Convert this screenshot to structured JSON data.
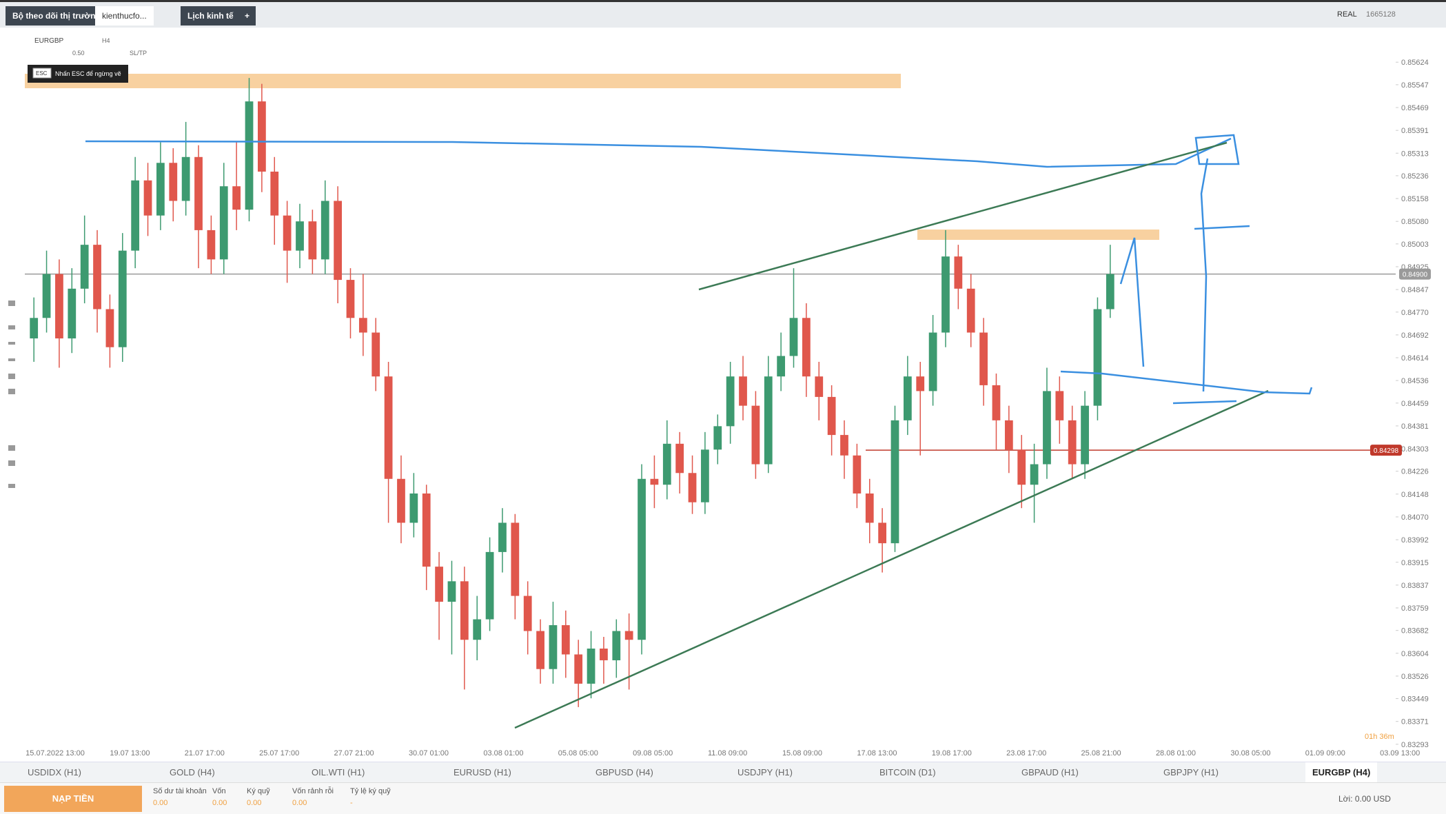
{
  "top_tabs": [
    "Bộ theo dõi thị trường",
    "kienthucfo...",
    "Lịch kinh tế"
  ],
  "top_right": {
    "account_type": "REAL",
    "account_id": "1665128"
  },
  "toolbar": {
    "symbol": "EURGBP",
    "timeframe": "H4",
    "lot": "0.50",
    "sltp": "SL/TP",
    "esc_key": "ESC",
    "esc_hint": "Nhấn ESC để ngừng vẽ"
  },
  "chart_data": {
    "type": "candlestick",
    "up_color": "#3d9a70",
    "down_color": "#e0574c",
    "open": [
      0.8468,
      0.8475,
      0.849,
      0.8468,
      0.8485,
      0.85,
      0.8478,
      0.8465,
      0.8498,
      0.8522,
      0.851,
      0.8528,
      0.8515,
      0.853,
      0.8505,
      0.8495,
      0.852,
      0.8512,
      0.8549,
      0.8525,
      0.851,
      0.8498,
      0.8508,
      0.8495,
      0.8515,
      0.8488,
      0.8475,
      0.847,
      0.8455,
      0.842,
      0.8405,
      0.8415,
      0.839,
      0.8378,
      0.8385,
      0.8365,
      0.8372,
      0.8395,
      0.8405,
      0.838,
      0.8368,
      0.8355,
      0.837,
      0.836,
      0.835,
      0.8362,
      0.8358,
      0.8368,
      0.8365,
      0.842,
      0.8418,
      0.8432,
      0.8422,
      0.8412,
      0.843,
      0.8438,
      0.8455,
      0.8445,
      0.8425,
      0.8455,
      0.8462,
      0.8475,
      0.8455,
      0.8448,
      0.8435,
      0.8428,
      0.8415,
      0.8405,
      0.8398,
      0.844,
      0.8455,
      0.845,
      0.847,
      0.8496,
      0.8485,
      0.847,
      0.8452,
      0.844,
      0.843,
      0.8418,
      0.8425,
      0.845,
      0.844,
      0.8425,
      0.8445,
      0.8478
    ],
    "high": [
      0.8482,
      0.8498,
      0.8495,
      0.8492,
      0.851,
      0.8505,
      0.8483,
      0.8504,
      0.853,
      0.8528,
      0.8535,
      0.8533,
      0.8542,
      0.8534,
      0.851,
      0.8528,
      0.8535,
      0.8557,
      0.8555,
      0.853,
      0.8515,
      0.8514,
      0.8512,
      0.8522,
      0.852,
      0.8492,
      0.849,
      0.8475,
      0.846,
      0.8428,
      0.8422,
      0.8418,
      0.8395,
      0.8392,
      0.839,
      0.838,
      0.84,
      0.841,
      0.8408,
      0.8385,
      0.8372,
      0.8378,
      0.8375,
      0.8365,
      0.8368,
      0.8366,
      0.8372,
      0.8374,
      0.8425,
      0.8428,
      0.844,
      0.8436,
      0.8428,
      0.8436,
      0.8442,
      0.846,
      0.8462,
      0.845,
      0.8462,
      0.847,
      0.8492,
      0.848,
      0.846,
      0.8452,
      0.844,
      0.8432,
      0.842,
      0.841,
      0.8445,
      0.8462,
      0.846,
      0.8476,
      0.8505,
      0.85,
      0.849,
      0.8475,
      0.8456,
      0.8445,
      0.8435,
      0.8432,
      0.8458,
      0.8455,
      0.8445,
      0.845,
      0.8482,
      0.85
    ],
    "low": [
      0.846,
      0.847,
      0.8458,
      0.8463,
      0.848,
      0.847,
      0.8458,
      0.846,
      0.8492,
      0.8503,
      0.8505,
      0.8508,
      0.851,
      0.8492,
      0.849,
      0.849,
      0.8505,
      0.8508,
      0.8518,
      0.85,
      0.8487,
      0.8492,
      0.849,
      0.849,
      0.848,
      0.8468,
      0.8462,
      0.845,
      0.8405,
      0.8398,
      0.84,
      0.8382,
      0.8365,
      0.836,
      0.8348,
      0.8358,
      0.8368,
      0.8388,
      0.8372,
      0.836,
      0.835,
      0.835,
      0.8352,
      0.8342,
      0.8345,
      0.835,
      0.8352,
      0.8348,
      0.836,
      0.841,
      0.8413,
      0.8415,
      0.8408,
      0.8408,
      0.8425,
      0.8432,
      0.844,
      0.842,
      0.8422,
      0.845,
      0.8458,
      0.8448,
      0.844,
      0.8428,
      0.842,
      0.841,
      0.8398,
      0.8388,
      0.8395,
      0.8435,
      0.8428,
      0.8445,
      0.8465,
      0.8478,
      0.8465,
      0.8445,
      0.843,
      0.8422,
      0.841,
      0.8405,
      0.842,
      0.8432,
      0.842,
      0.842,
      0.844,
      0.8475
    ],
    "close": [
      0.8475,
      0.849,
      0.8468,
      0.8485,
      0.85,
      0.8478,
      0.8465,
      0.8498,
      0.8522,
      0.851,
      0.8528,
      0.8515,
      0.853,
      0.8505,
      0.8495,
      0.852,
      0.8512,
      0.8549,
      0.8525,
      0.851,
      0.8498,
      0.8508,
      0.8495,
      0.8515,
      0.8488,
      0.8475,
      0.847,
      0.8455,
      0.842,
      0.8405,
      0.8415,
      0.839,
      0.8378,
      0.8385,
      0.8365,
      0.8372,
      0.8395,
      0.8405,
      0.838,
      0.8368,
      0.8355,
      0.837,
      0.836,
      0.835,
      0.8362,
      0.8358,
      0.8368,
      0.8365,
      0.842,
      0.8418,
      0.8432,
      0.8422,
      0.8412,
      0.843,
      0.8438,
      0.8455,
      0.8445,
      0.8425,
      0.8455,
      0.8462,
      0.8475,
      0.8455,
      0.8448,
      0.8435,
      0.8428,
      0.8415,
      0.8405,
      0.8398,
      0.844,
      0.8455,
      0.845,
      0.847,
      0.8496,
      0.8485,
      0.847,
      0.8452,
      0.844,
      0.843,
      0.8418,
      0.8425,
      0.845,
      0.844,
      0.8425,
      0.8445,
      0.8478,
      0.849
    ],
    "ylim": [
      0.83269,
      0.85707
    ],
    "yticks": [
      0.85624,
      0.85547,
      0.85469,
      0.85391,
      0.85313,
      0.85236,
      0.85158,
      {
        "value": 0.8508,
        "label": "0.85080"
      },
      0.85003,
      0.84925,
      0.84847,
      {
        "value": 0.8477,
        "label": "0.84770"
      },
      0.84692,
      0.84614,
      0.84536,
      0.84459,
      0.84381,
      0.84303,
      0.84226,
      0.84148,
      {
        "value": 0.8407,
        "label": "0.84070"
      },
      0.83992,
      0.83915,
      0.83837,
      0.83759,
      0.83682,
      0.83604,
      0.83526,
      0.83449,
      0.83371,
      0.83293
    ],
    "price_markers": [
      {
        "value": 0.849,
        "label": "0.84900",
        "color": "#9a9a9a"
      },
      {
        "value": 0.84298,
        "label": "0.84298",
        "color": "#c0392b"
      }
    ],
    "time_labels": [
      "15.07.2022 13:00",
      "19.07 13:00",
      "21.07 17:00",
      "25.07 17:00",
      "27.07 21:00",
      "30.07 01:00",
      "03.08 01:00",
      "05.08 05:00",
      "09.08 05:00",
      "11.08 09:00",
      "15.08 09:00",
      "17.08 13:00",
      "19.08 17:00",
      "23.08 17:00",
      "25.08 21:00",
      "28.08 01:00",
      "30.08 05:00",
      "01.09 09:00",
      "03.09 13:00"
    ],
    "countdown": "01h 36m"
  },
  "instrument_tabs": [
    "USDIDX (H1)",
    "GOLD (H4)",
    "OIL.WTI (H1)",
    "EURUSD (H1)",
    "GBPUSD (H4)",
    "USDJPY (H1)",
    "BITCOIN (D1)",
    "GBPAUD (H1)",
    "GBPJPY (H1)",
    "EURGBP (H4)"
  ],
  "footer": {
    "deposit": "NẠP TIỀN",
    "fields": [
      {
        "label": "Số dư tài khoản",
        "value": "0.00"
      },
      {
        "label": "Vốn",
        "value": "0.00"
      },
      {
        "label": "Ký quỹ",
        "value": "0.00"
      },
      {
        "label": "Vốn rảnh rỗi",
        "value": "0.00"
      },
      {
        "label": "Tỷ lệ ký quỹ",
        "value": "-"
      }
    ],
    "profit": "Lời: 0.00 USD"
  }
}
